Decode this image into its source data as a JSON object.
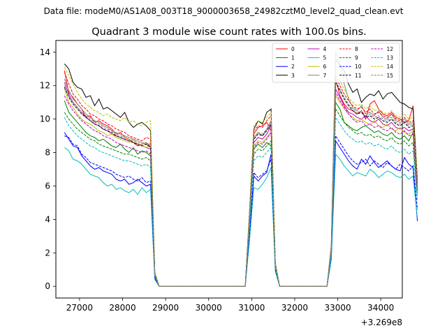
{
  "figure": {
    "suptitle": "Data file: modeM0/AS1A08_003T18_9000003658_24982cztM0_level2_quad_clean.evt"
  },
  "chart_data": {
    "type": "line",
    "title": "Quadrant 3 module wise count rates with 100.0s bins.",
    "xlabel": "",
    "ylabel": "",
    "x_offset_label": "+3.269e8",
    "xlim": [
      26450,
      34500
    ],
    "ylim": [
      -0.7,
      14.7
    ],
    "x_ticks": [
      27000,
      28000,
      29000,
      30000,
      31000,
      32000,
      33000,
      34000
    ],
    "x_tick_labels": [
      "27000",
      "28000",
      "29000",
      "30000",
      "31000",
      "32000",
      "33000",
      "34000"
    ],
    "y_ticks": [
      0,
      2,
      4,
      6,
      8,
      10,
      12,
      14
    ],
    "y_tick_labels": [
      "0",
      "2",
      "4",
      "6",
      "8",
      "10",
      "12",
      "14"
    ],
    "grid": false,
    "legend_position": "top-right",
    "legend_columns": 4,
    "x_start": 26650,
    "x_step": 100,
    "series": [
      {
        "name": "0",
        "color": "#ff0000",
        "dash": "solid",
        "segments": [
          [
            12.9,
            11.6,
            11.3,
            10.9,
            10.6,
            10.1,
            10.2,
            9.8,
            9.9,
            9.7,
            9.6,
            9.4,
            9.1,
            9.2,
            8.9,
            8.8,
            8.6,
            8.4,
            8.5,
            8.6,
            8.3,
            0.7,
            0.0
          ],
          [
            0.0,
            4.3,
            9.1,
            9.5,
            9.6,
            9.8,
            9.3,
            1.3,
            0.0
          ],
          [
            0.0,
            2.3,
            12.4,
            11.4,
            10.9,
            10.6,
            10.5,
            10.3,
            10.5,
            10.0,
            10.9,
            11.1,
            10.6,
            10.3,
            10.2,
            10.4,
            10.1,
            10.0,
            9.8,
            9.9,
            10.8,
            6.2
          ]
        ]
      },
      {
        "name": "1",
        "color": "#008000",
        "dash": "solid",
        "segments": [
          [
            11.1,
            10.4,
            10.1,
            9.8,
            9.5,
            9.2,
            9.0,
            8.9,
            8.7,
            8.8,
            8.6,
            8.4,
            8.3,
            8.5,
            8.2,
            8.0,
            8.3,
            7.9,
            8.1,
            8.0,
            7.8,
            0.6,
            0.0
          ],
          [
            0.0,
            3.9,
            8.2,
            8.5,
            8.3,
            8.6,
            8.4,
            1.2,
            0.0
          ],
          [
            0.0,
            2.1,
            11.0,
            10.6,
            9.8,
            9.6,
            9.4,
            9.3,
            9.5,
            9.6,
            9.4,
            9.2,
            9.3,
            9.1,
            9.0,
            9.2,
            8.9,
            8.8,
            9.0,
            8.7,
            9.2,
            5.7
          ]
        ]
      },
      {
        "name": "2",
        "color": "#0000ff",
        "dash": "solid",
        "segments": [
          [
            9.2,
            8.8,
            8.4,
            8.3,
            7.8,
            7.5,
            7.2,
            7.0,
            7.1,
            6.9,
            6.8,
            6.7,
            6.4,
            6.3,
            6.4,
            6.1,
            6.2,
            6.4,
            6.2,
            6.0,
            6.1,
            0.5,
            0.0
          ],
          [
            0.0,
            3.0,
            6.6,
            6.3,
            6.6,
            6.8,
            7.9,
            1.0,
            0.0
          ],
          [
            0.0,
            1.7,
            8.7,
            8.3,
            7.9,
            7.5,
            7.2,
            7.0,
            7.6,
            7.3,
            7.8,
            7.4,
            7.1,
            7.3,
            7.5,
            7.2,
            7.0,
            6.9,
            7.7,
            7.3,
            7.1,
            3.9
          ]
        ]
      },
      {
        "name": "3",
        "color": "#000000",
        "dash": "solid",
        "segments": [
          [
            13.3,
            13.0,
            12.2,
            11.9,
            11.8,
            11.3,
            11.4,
            10.8,
            11.2,
            10.6,
            10.7,
            10.5,
            10.3,
            10.1,
            10.4,
            9.8,
            9.5,
            9.7,
            9.8,
            9.6,
            9.3,
            0.8,
            0.0
          ],
          [
            0.0,
            4.5,
            9.4,
            9.9,
            9.7,
            10.4,
            10.6,
            1.4,
            0.0
          ],
          [
            0.0,
            2.4,
            13.6,
            13.2,
            12.9,
            12.1,
            11.6,
            11.8,
            11.0,
            11.3,
            11.5,
            11.4,
            11.7,
            11.2,
            11.5,
            11.6,
            11.3,
            11.0,
            10.9,
            10.7,
            10.6,
            6.4
          ]
        ]
      },
      {
        "name": "4",
        "color": "#bf00bf",
        "dash": "solid",
        "segments": [
          [
            12.2,
            11.5,
            11.0,
            10.7,
            10.4,
            10.1,
            9.9,
            9.7,
            9.6,
            9.4,
            9.3,
            9.1,
            9.0,
            8.9,
            8.8,
            8.7,
            8.6,
            8.5,
            8.4,
            8.3,
            8.2,
            0.7,
            0.0
          ],
          [
            0.0,
            4.1,
            8.6,
            8.9,
            8.8,
            9.1,
            9.6,
            1.3,
            0.0
          ],
          [
            0.0,
            2.2,
            11.8,
            11.3,
            10.8,
            10.4,
            10.3,
            10.1,
            10.0,
            10.2,
            9.9,
            9.8,
            10.0,
            9.7,
            9.6,
            9.8,
            9.5,
            9.4,
            9.5,
            9.3,
            9.4,
            5.9
          ]
        ]
      },
      {
        "name": "5",
        "color": "#00bfbf",
        "dash": "solid",
        "segments": [
          [
            8.3,
            8.1,
            7.6,
            7.5,
            7.3,
            7.0,
            6.7,
            6.6,
            6.5,
            6.2,
            6.0,
            6.1,
            5.8,
            5.9,
            5.7,
            5.6,
            5.8,
            5.5,
            5.9,
            5.6,
            5.8,
            0.4,
            0.0
          ],
          [
            0.0,
            2.8,
            5.9,
            5.8,
            6.1,
            6.5,
            7.1,
            0.9,
            0.0
          ],
          [
            0.0,
            1.6,
            7.9,
            7.6,
            7.2,
            6.9,
            6.6,
            6.8,
            6.7,
            6.6,
            7.0,
            6.8,
            6.5,
            6.7,
            6.9,
            6.8,
            6.6,
            6.5,
            6.7,
            6.4,
            6.6,
            4.1
          ]
        ]
      },
      {
        "name": "6",
        "color": "#bfbf00",
        "dash": "solid",
        "segments": [
          [
            11.8,
            11.0,
            10.7,
            10.3,
            10.0,
            9.8,
            9.7,
            9.5,
            9.3,
            9.2,
            9.0,
            9.1,
            8.9,
            8.8,
            8.7,
            8.6,
            8.8,
            8.5,
            8.4,
            8.3,
            8.6,
            0.6,
            0.0
          ],
          [
            0.0,
            4.0,
            8.4,
            8.7,
            8.6,
            8.9,
            9.2,
            1.2,
            0.0
          ],
          [
            0.0,
            2.2,
            11.4,
            11.0,
            10.6,
            10.3,
            10.1,
            9.9,
            10.0,
            9.8,
            9.7,
            9.9,
            9.6,
            9.5,
            9.7,
            9.4,
            9.3,
            9.5,
            9.2,
            9.1,
            9.3,
            5.8
          ]
        ]
      },
      {
        "name": "7",
        "color": "#808080",
        "dash": "solid",
        "segments": [
          [
            12.4,
            11.7,
            11.2,
            10.9,
            10.6,
            10.3,
            10.1,
            9.9,
            9.8,
            9.6,
            9.5,
            9.3,
            9.2,
            9.1,
            9.0,
            8.9,
            8.8,
            8.7,
            8.6,
            8.5,
            8.4,
            0.7,
            0.0
          ],
          [
            0.0,
            4.2,
            8.9,
            9.2,
            9.0,
            9.4,
            9.9,
            1.3,
            0.0
          ],
          [
            0.0,
            2.5,
            14.0,
            13.3,
            12.1,
            11.2,
            10.7,
            10.5,
            10.8,
            10.3,
            10.4,
            10.2,
            10.5,
            10.1,
            10.0,
            10.3,
            9.9,
            9.8,
            10.0,
            9.7,
            9.8,
            6.1
          ]
        ]
      },
      {
        "name": "8",
        "color": "#ff0000",
        "dash": "dash",
        "segments": [
          [
            12.8,
            12.1,
            11.5,
            11.2,
            10.8,
            10.6,
            10.3,
            10.2,
            10.0,
            9.9,
            9.7,
            9.6,
            9.4,
            9.3,
            9.2,
            9.0,
            8.9,
            8.8,
            8.7,
            8.9,
            8.8,
            0.7,
            0.0
          ],
          [
            0.0,
            4.4,
            9.3,
            9.6,
            9.5,
            9.9,
            10.2,
            1.3,
            0.0
          ],
          [
            0.0,
            2.3,
            12.6,
            12.0,
            11.5,
            11.1,
            10.8,
            10.6,
            10.7,
            10.4,
            10.6,
            10.3,
            10.4,
            10.2,
            10.1,
            10.3,
            10.0,
            9.9,
            10.1,
            9.8,
            9.9,
            6.2
          ]
        ]
      },
      {
        "name": "9",
        "color": "#008000",
        "dash": "dash",
        "segments": [
          [
            10.4,
            10.0,
            9.7,
            9.4,
            9.2,
            9.0,
            8.8,
            8.7,
            8.5,
            8.4,
            8.3,
            8.2,
            8.1,
            8.0,
            7.9,
            7.9,
            7.8,
            7.7,
            7.6,
            7.7,
            7.5,
            0.6,
            0.0
          ],
          [
            0.0,
            3.8,
            7.9,
            8.2,
            8.1,
            8.4,
            8.7,
            1.1,
            0.0
          ],
          [
            0.0,
            2.0,
            10.6,
            10.2,
            9.8,
            9.5,
            9.3,
            9.1,
            9.2,
            9.0,
            9.1,
            8.9,
            9.0,
            8.8,
            8.7,
            8.9,
            8.6,
            8.5,
            8.7,
            8.4,
            8.6,
            5.4
          ]
        ]
      },
      {
        "name": "10",
        "color": "#0000ff",
        "dash": "dash",
        "segments": [
          [
            9.0,
            8.9,
            8.5,
            8.4,
            7.9,
            7.7,
            7.4,
            7.3,
            7.2,
            7.1,
            7.0,
            6.9,
            6.7,
            6.6,
            6.5,
            6.6,
            6.4,
            6.3,
            6.5,
            6.2,
            6.3,
            0.5,
            0.0
          ],
          [
            0.0,
            3.1,
            6.8,
            6.5,
            6.7,
            6.9,
            7.6,
            1.0,
            0.0
          ],
          [
            0.0,
            1.7,
            9.0,
            8.6,
            8.2,
            7.8,
            7.5,
            7.3,
            7.4,
            7.6,
            7.2,
            7.5,
            7.3,
            7.1,
            7.4,
            7.2,
            7.0,
            7.3,
            7.1,
            6.9,
            7.2,
            4.6
          ]
        ]
      },
      {
        "name": "11",
        "color": "#000000",
        "dash": "dash",
        "segments": [
          [
            11.9,
            11.3,
            10.9,
            10.6,
            10.3,
            10.1,
            9.9,
            9.7,
            9.6,
            9.4,
            9.3,
            9.2,
            9.0,
            8.9,
            8.8,
            8.7,
            8.6,
            8.5,
            8.4,
            8.5,
            8.3,
            0.7,
            0.0
          ],
          [
            0.0,
            4.2,
            8.8,
            9.1,
            9.0,
            9.3,
            9.7,
            1.3,
            0.0
          ],
          [
            0.0,
            2.3,
            12.2,
            11.7,
            11.2,
            10.8,
            10.5,
            10.3,
            10.4,
            10.1,
            10.2,
            10.0,
            10.1,
            9.9,
            9.8,
            10.0,
            9.7,
            9.6,
            9.8,
            9.5,
            9.6,
            6.0
          ]
        ]
      },
      {
        "name": "12",
        "color": "#bf00bf",
        "dash": "dash",
        "segments": [
          [
            11.4,
            10.9,
            10.5,
            10.2,
            9.9,
            9.7,
            9.5,
            9.3,
            9.2,
            9.0,
            8.9,
            8.8,
            8.6,
            8.5,
            8.4,
            8.3,
            8.2,
            8.1,
            8.0,
            8.1,
            7.9,
            0.6,
            0.0
          ],
          [
            0.0,
            4.0,
            8.3,
            8.6,
            8.5,
            8.8,
            9.2,
            1.2,
            0.0
          ],
          [
            0.0,
            2.1,
            11.6,
            11.1,
            10.7,
            10.3,
            10.0,
            9.8,
            9.9,
            9.6,
            9.7,
            9.5,
            9.6,
            9.4,
            9.3,
            9.5,
            9.2,
            9.1,
            9.3,
            9.0,
            9.1,
            5.7
          ]
        ]
      },
      {
        "name": "13",
        "color": "#00bfbf",
        "dash": "dash",
        "segments": [
          [
            10.1,
            9.6,
            9.3,
            9.0,
            8.8,
            8.6,
            8.4,
            8.3,
            8.1,
            8.0,
            7.9,
            7.8,
            7.7,
            7.6,
            7.5,
            7.5,
            7.4,
            7.3,
            7.2,
            7.3,
            7.1,
            0.6,
            0.0
          ],
          [
            0.0,
            3.6,
            7.5,
            7.8,
            7.7,
            8.0,
            8.3,
            1.1,
            0.0
          ],
          [
            0.0,
            1.9,
            10.1,
            9.7,
            9.3,
            9.0,
            8.8,
            8.6,
            8.7,
            8.5,
            8.6,
            8.4,
            8.5,
            8.3,
            8.2,
            8.4,
            8.1,
            8.0,
            8.2,
            7.9,
            8.1,
            5.1
          ]
        ]
      },
      {
        "name": "14",
        "color": "#bfbf00",
        "dash": "dash",
        "segments": [
          [
            13.1,
            12.6,
            12.1,
            11.6,
            11.2,
            10.9,
            10.7,
            10.5,
            10.4,
            10.2,
            10.3,
            10.1,
            10.0,
            9.9,
            10.1,
            9.8,
            9.9,
            9.7,
            9.6,
            9.8,
            9.9,
            0.8,
            0.0
          ],
          [
            0.0,
            4.6,
            9.6,
            9.9,
            9.8,
            10.1,
            10.4,
            1.4,
            0.0
          ],
          [
            0.0,
            2.4,
            12.9,
            12.3,
            11.8,
            11.3,
            11.0,
            10.8,
            10.9,
            10.6,
            10.8,
            10.5,
            10.6,
            10.4,
            10.3,
            10.5,
            10.2,
            10.1,
            10.3,
            10.0,
            10.1,
            6.3
          ]
        ]
      },
      {
        "name": "15",
        "color": "#808080",
        "dash": "dash",
        "segments": [
          [
            12.0,
            11.4,
            11.0,
            10.7,
            10.4,
            10.2,
            10.0,
            9.8,
            9.7,
            9.5,
            9.4,
            9.3,
            9.1,
            9.0,
            8.9,
            8.8,
            8.7,
            8.6,
            8.5,
            8.6,
            8.4,
            0.7,
            0.0
          ],
          [
            0.0,
            4.2,
            8.9,
            9.2,
            9.1,
            9.4,
            9.8,
            1.3,
            0.0
          ],
          [
            0.0,
            2.3,
            12.3,
            11.8,
            11.3,
            10.9,
            10.6,
            10.4,
            10.5,
            10.2,
            10.3,
            10.1,
            10.2,
            10.0,
            9.9,
            10.1,
            9.8,
            9.7,
            9.9,
            9.6,
            9.7,
            6.0
          ]
        ]
      }
    ]
  }
}
